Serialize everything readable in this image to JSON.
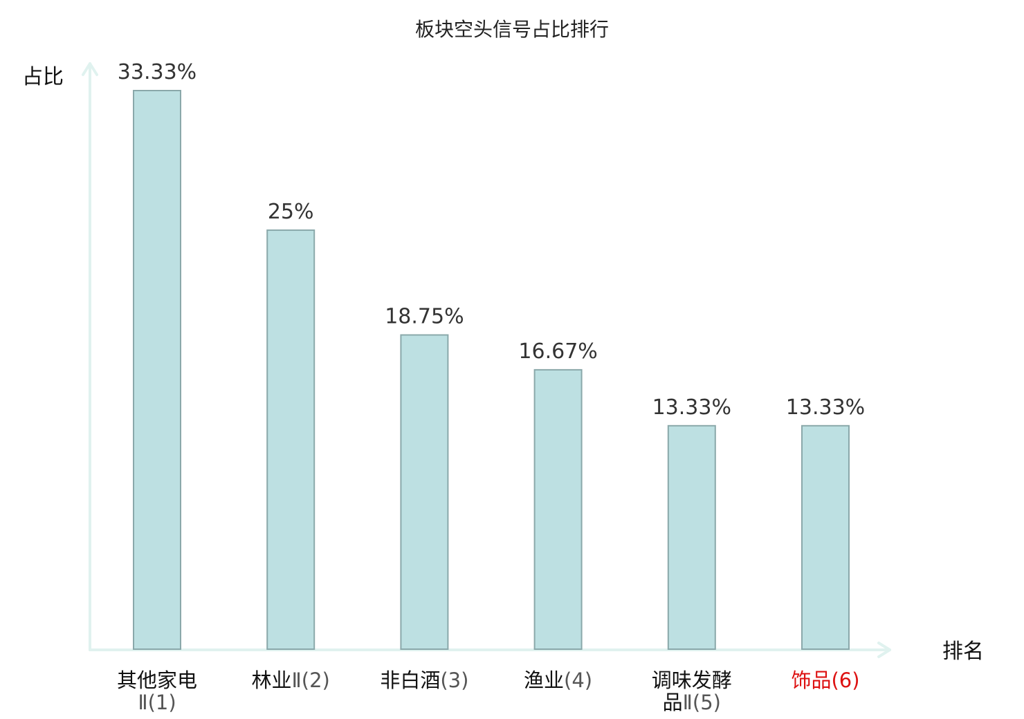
{
  "chart_data": {
    "type": "bar",
    "title": "板块空头信号占比排行",
    "xlabel": "排名",
    "ylabel": "占比",
    "ylim": [
      0,
      33.33
    ],
    "categories": [
      {
        "lines": [
          {
            "name": "其他家电",
            "rank": ""
          },
          {
            "name": "",
            "rank": "Ⅱ(1)"
          }
        ],
        "highlight": false
      },
      {
        "lines": [
          {
            "name": "林业",
            "rank": "Ⅱ(2)"
          }
        ],
        "highlight": false
      },
      {
        "lines": [
          {
            "name": "非白酒",
            "rank": "(3)"
          }
        ],
        "highlight": false
      },
      {
        "lines": [
          {
            "name": "渔业",
            "rank": "(4)"
          }
        ],
        "highlight": false
      },
      {
        "lines": [
          {
            "name": "调味发酵",
            "rank": ""
          },
          {
            "name": "品",
            "rank": "Ⅱ(5)"
          }
        ],
        "highlight": false
      },
      {
        "lines": [
          {
            "name": "饰品",
            "rank": "(6)"
          }
        ],
        "highlight": true
      }
    ],
    "values": [
      33.33,
      25,
      18.75,
      16.67,
      13.33,
      13.33
    ],
    "value_labels": [
      "33.33%",
      "25%",
      "18.75%",
      "16.67%",
      "13.33%",
      "13.33%"
    ],
    "grid": false,
    "legend": "none"
  },
  "colors": {
    "bar_fill": "#bde0e2",
    "bar_stroke": "#8aa8aa",
    "axis": "#e0f2ef",
    "highlight": "#dd1111"
  }
}
